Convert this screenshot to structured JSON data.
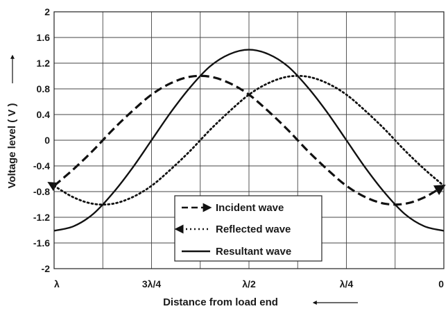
{
  "chart_data": {
    "type": "line",
    "xlabel": "Distance from load end",
    "ylabel": "Voltage level ( V )",
    "x_ticks": [
      {
        "pos": 0,
        "label": "λ"
      },
      {
        "pos": 0.25,
        "label": "3λ/4"
      },
      {
        "pos": 0.5,
        "label": "λ/2"
      },
      {
        "pos": 0.75,
        "label": "λ/4"
      },
      {
        "pos": 1,
        "label": "0"
      }
    ],
    "xlim": [
      0,
      1
    ],
    "ylim": [
      -2,
      2
    ],
    "y_ticks": [
      "2",
      "1.6",
      "1.2",
      "0.8",
      "0.4",
      "0",
      "-0.4",
      "-0.8",
      "-1.2",
      "-1.6",
      "-2"
    ],
    "grid": true,
    "legend_position": "bottom-center",
    "series": [
      {
        "name": "Incident wave",
        "style": "dashed",
        "arrow": "end",
        "x": [
          0,
          0.05,
          0.1,
          0.15,
          0.2,
          0.25,
          0.3,
          0.35,
          0.4,
          0.45,
          0.5,
          0.55,
          0.6,
          0.65,
          0.7,
          0.75,
          0.8,
          0.85,
          0.9,
          0.95,
          1
        ],
        "y": [
          -0.71,
          -0.45,
          -0.16,
          0.16,
          0.45,
          0.71,
          0.89,
          0.99,
          0.99,
          0.89,
          0.71,
          0.45,
          0.16,
          -0.16,
          -0.45,
          -0.71,
          -0.89,
          -0.99,
          -0.99,
          -0.89,
          -0.71
        ]
      },
      {
        "name": "Reflected wave",
        "style": "dotted",
        "arrow": "start",
        "x": [
          0,
          0.05,
          0.1,
          0.15,
          0.2,
          0.25,
          0.3,
          0.35,
          0.4,
          0.45,
          0.5,
          0.55,
          0.6,
          0.65,
          0.7,
          0.75,
          0.8,
          0.85,
          0.9,
          0.95,
          1
        ],
        "y": [
          -0.71,
          -0.89,
          -0.99,
          -0.99,
          -0.89,
          -0.71,
          -0.45,
          -0.16,
          0.16,
          0.45,
          0.71,
          0.89,
          0.99,
          0.99,
          0.89,
          0.71,
          0.45,
          0.16,
          -0.16,
          -0.45,
          -0.71
        ]
      },
      {
        "name": "Resultant wave",
        "style": "solid",
        "x": [
          0,
          0.05,
          0.1,
          0.15,
          0.2,
          0.25,
          0.3,
          0.35,
          0.4,
          0.45,
          0.5,
          0.55,
          0.6,
          0.65,
          0.7,
          0.75,
          0.8,
          0.85,
          0.9,
          0.95,
          1
        ],
        "y": [
          -1.41,
          -1.34,
          -1.15,
          -0.83,
          -0.44,
          0,
          0.44,
          0.83,
          1.15,
          1.34,
          1.41,
          1.34,
          1.15,
          0.83,
          0.44,
          0,
          -0.44,
          -0.83,
          -1.15,
          -1.34,
          -1.41
        ]
      }
    ]
  }
}
